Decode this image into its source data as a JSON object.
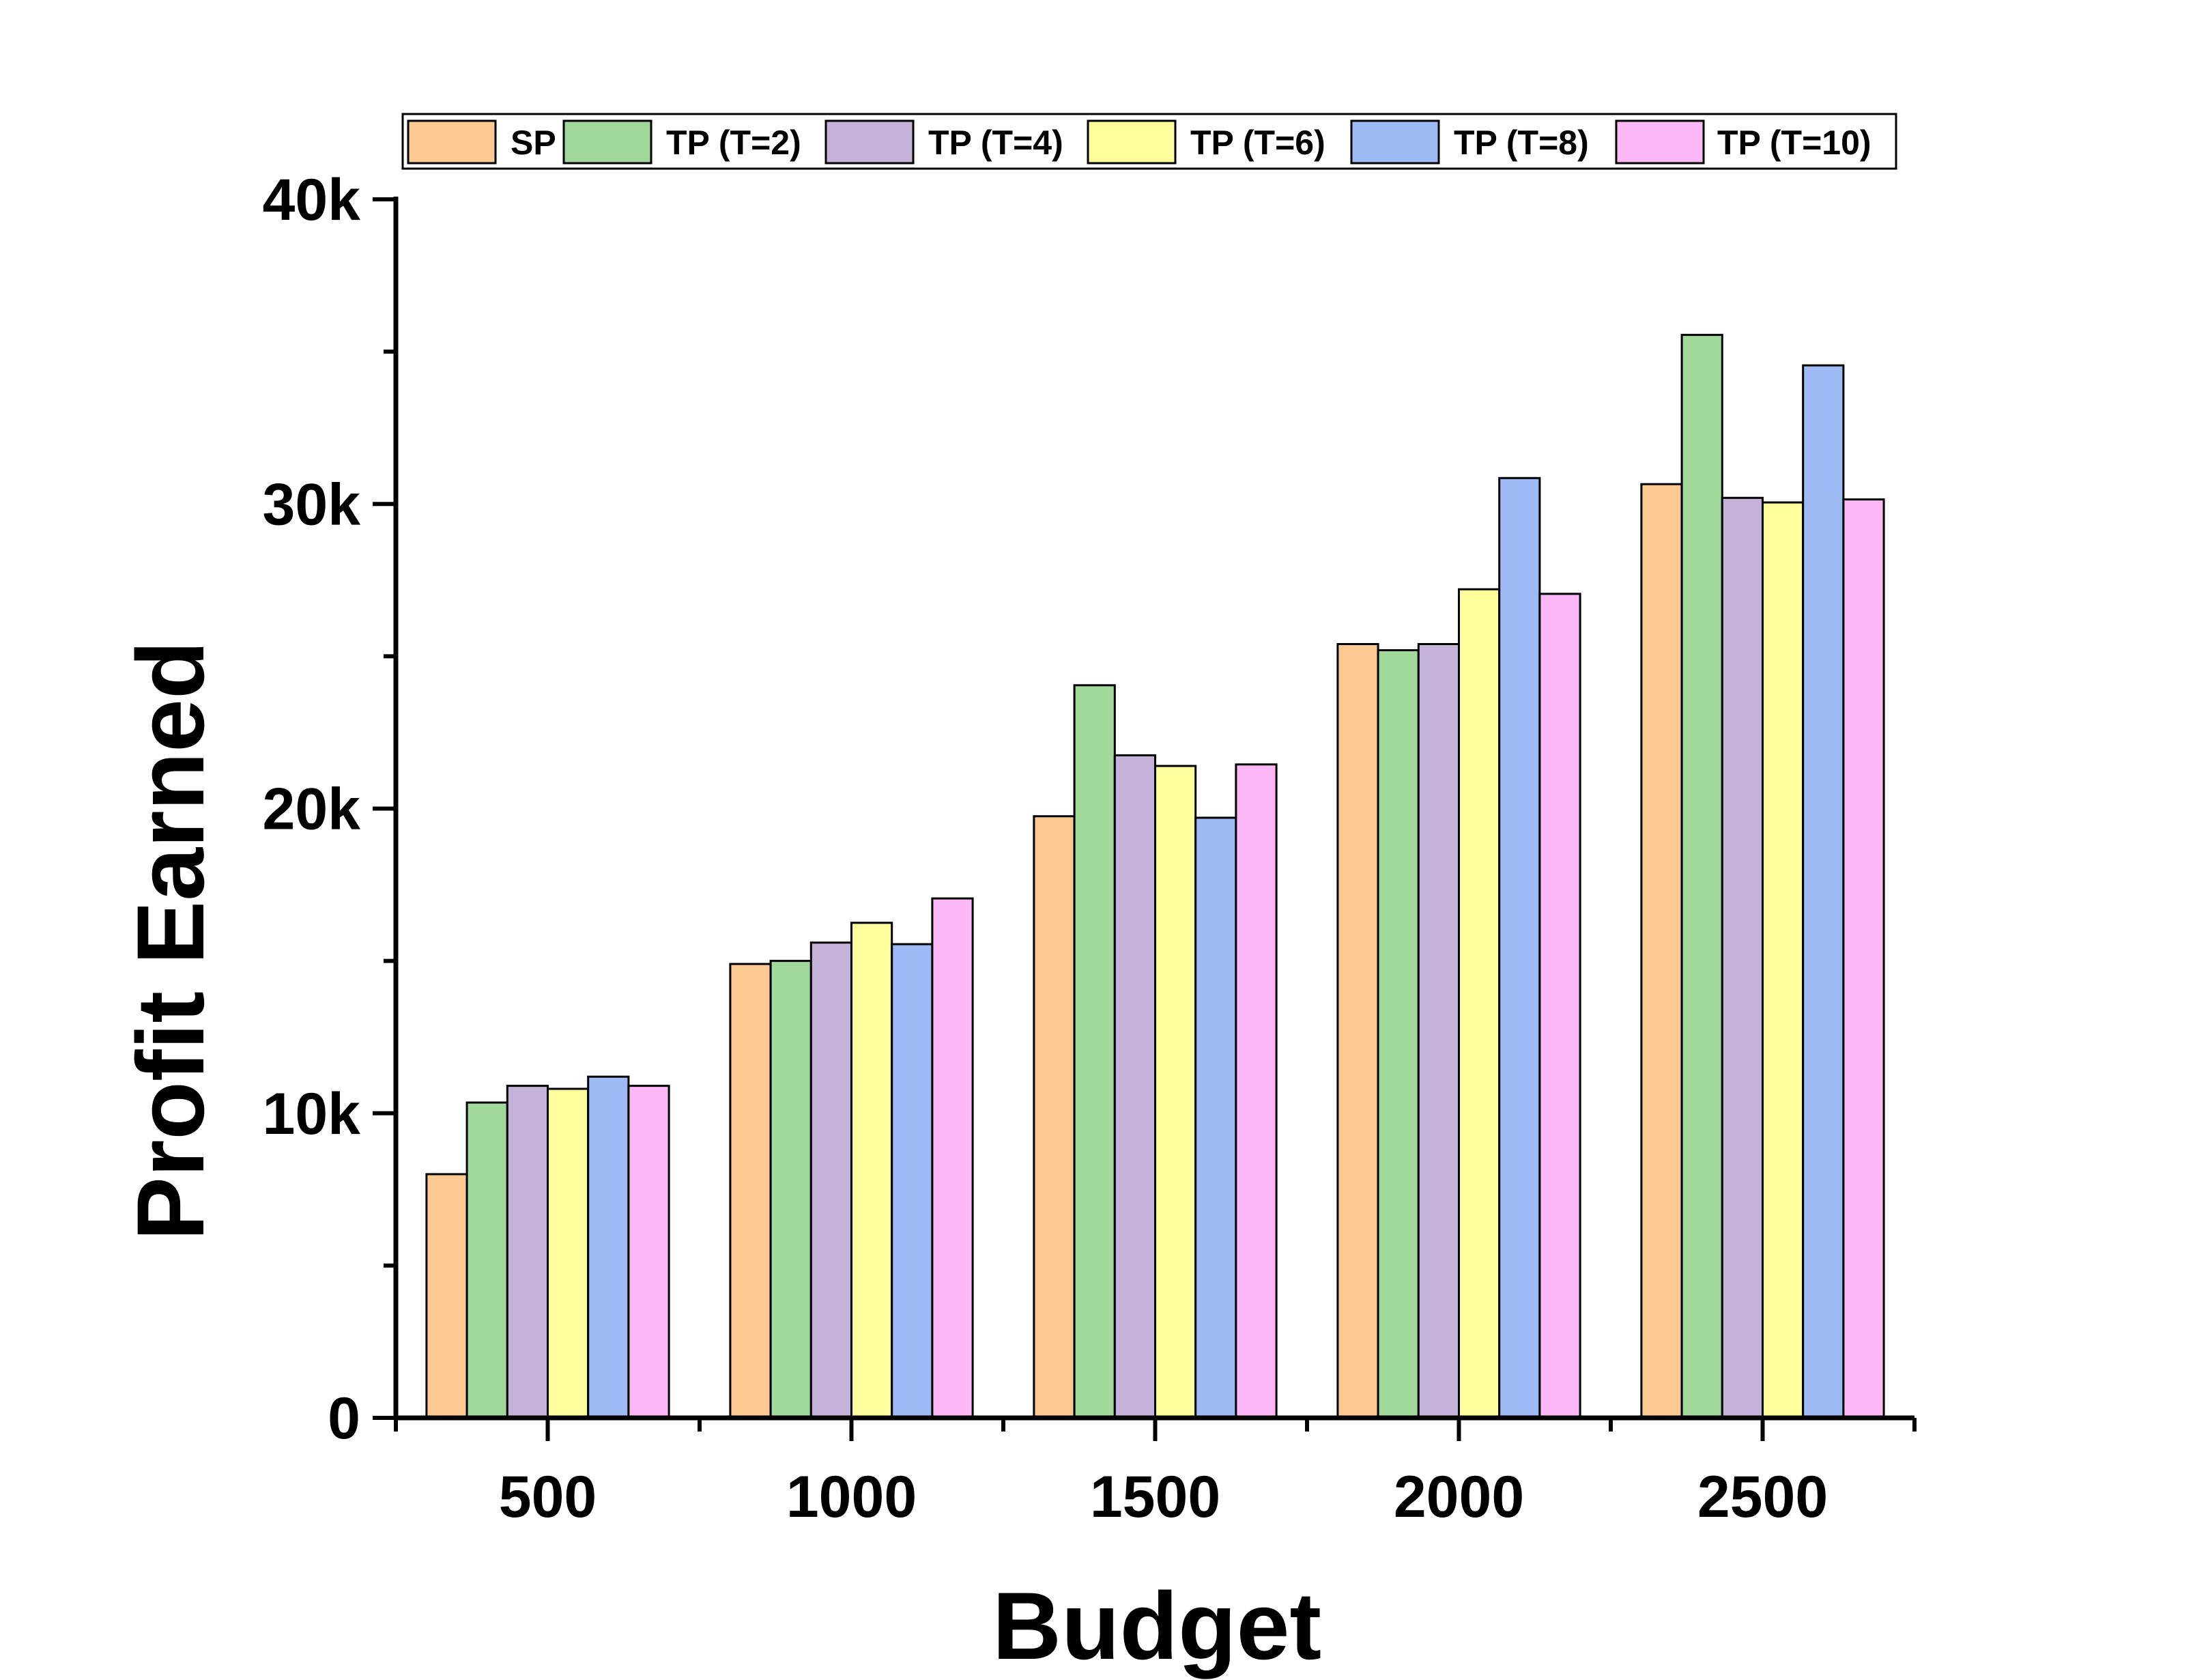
{
  "chart_data": {
    "type": "bar",
    "title": "",
    "xlabel": "Budget",
    "ylabel": "Profit Earned",
    "categories": [
      "500",
      "1000",
      "1500",
      "2000",
      "2500"
    ],
    "ylim": [
      0,
      40000
    ],
    "yticks": [
      0,
      10000,
      20000,
      30000,
      40000
    ],
    "ytick_labels": [
      "0",
      "10k",
      "20k",
      "30k",
      "40k"
    ],
    "legend_position": "top",
    "grid": false,
    "series": [
      {
        "name": "SP",
        "color": "#FCC992",
        "values": [
          8000,
          14900,
          19750,
          25400,
          30650
        ]
      },
      {
        "name": "TP (T=2)",
        "color": "#A0D99A",
        "values": [
          10350,
          15000,
          24050,
          25200,
          35550
        ]
      },
      {
        "name": "TP (T=4)",
        "color": "#C5B2D8",
        "values": [
          10900,
          15600,
          21750,
          25400,
          30200
        ]
      },
      {
        "name": "TP (T=6)",
        "color": "#FEFE9C",
        "values": [
          10800,
          16250,
          21400,
          27200,
          30050
        ]
      },
      {
        "name": "TP (T=8)",
        "color": "#9DBAF4",
        "values": [
          11200,
          15550,
          19700,
          30850,
          34550
        ]
      },
      {
        "name": "TP (T=10)",
        "color": "#FBB7F6",
        "values": [
          10900,
          17050,
          21450,
          27050,
          30150
        ]
      }
    ]
  }
}
